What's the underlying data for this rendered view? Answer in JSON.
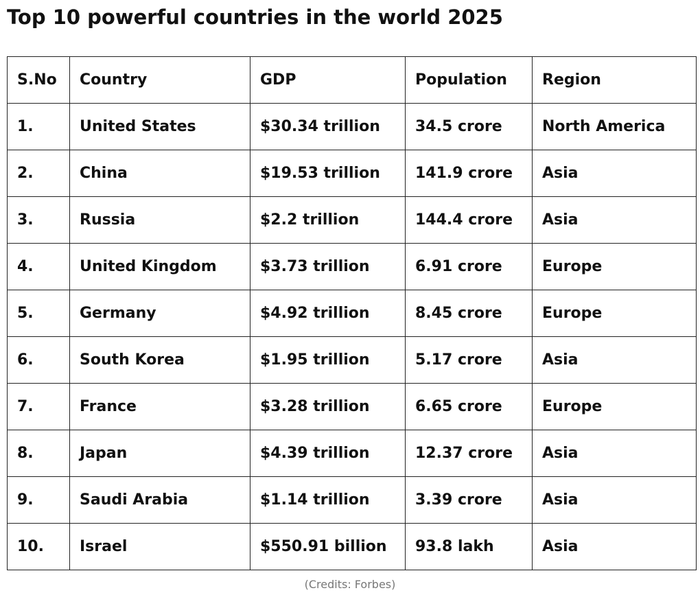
{
  "title": "Top 10 powerful countries in the world 2025",
  "table": {
    "headers": {
      "sno": "S.No",
      "country": "Country",
      "gdp": "GDP",
      "population": "Population",
      "region": "Region"
    },
    "rows": [
      {
        "sno": "1.",
        "country": "United States",
        "gdp": "$30.34 trillion",
        "population": "34.5 crore",
        "region": "North America"
      },
      {
        "sno": "2.",
        "country": "China",
        "gdp": "$19.53 trillion",
        "population": "141.9 crore",
        "region": "Asia"
      },
      {
        "sno": "3.",
        "country": "Russia",
        "gdp": "$2.2 trillion",
        "population": "144.4 crore",
        "region": "Asia"
      },
      {
        "sno": "4.",
        "country": "United Kingdom",
        "gdp": "$3.73 trillion",
        "population": "6.91 crore",
        "region": "Europe"
      },
      {
        "sno": "5.",
        "country": "Germany",
        "gdp": "$4.92 trillion",
        "population": "8.45 crore",
        "region": "Europe"
      },
      {
        "sno": "6.",
        "country": "South Korea",
        "gdp": "$1.95 trillion",
        "population": "5.17 crore",
        "region": "Asia"
      },
      {
        "sno": "7.",
        "country": "France",
        "gdp": "$3.28 trillion",
        "population": "6.65 crore",
        "region": "Europe"
      },
      {
        "sno": "8.",
        "country": "Japan",
        "gdp": "$4.39 trillion",
        "population": "12.37 crore",
        "region": "Asia"
      },
      {
        "sno": "9.",
        "country": "Saudi Arabia",
        "gdp": "$1.14 trillion",
        "population": "3.39 crore",
        "region": "Asia"
      },
      {
        "sno": "10.",
        "country": "Israel",
        "gdp": "$550.91 billion",
        "population": "93.8 lakh",
        "region": "Asia"
      }
    ]
  },
  "credits": "(Credits: Forbes)"
}
